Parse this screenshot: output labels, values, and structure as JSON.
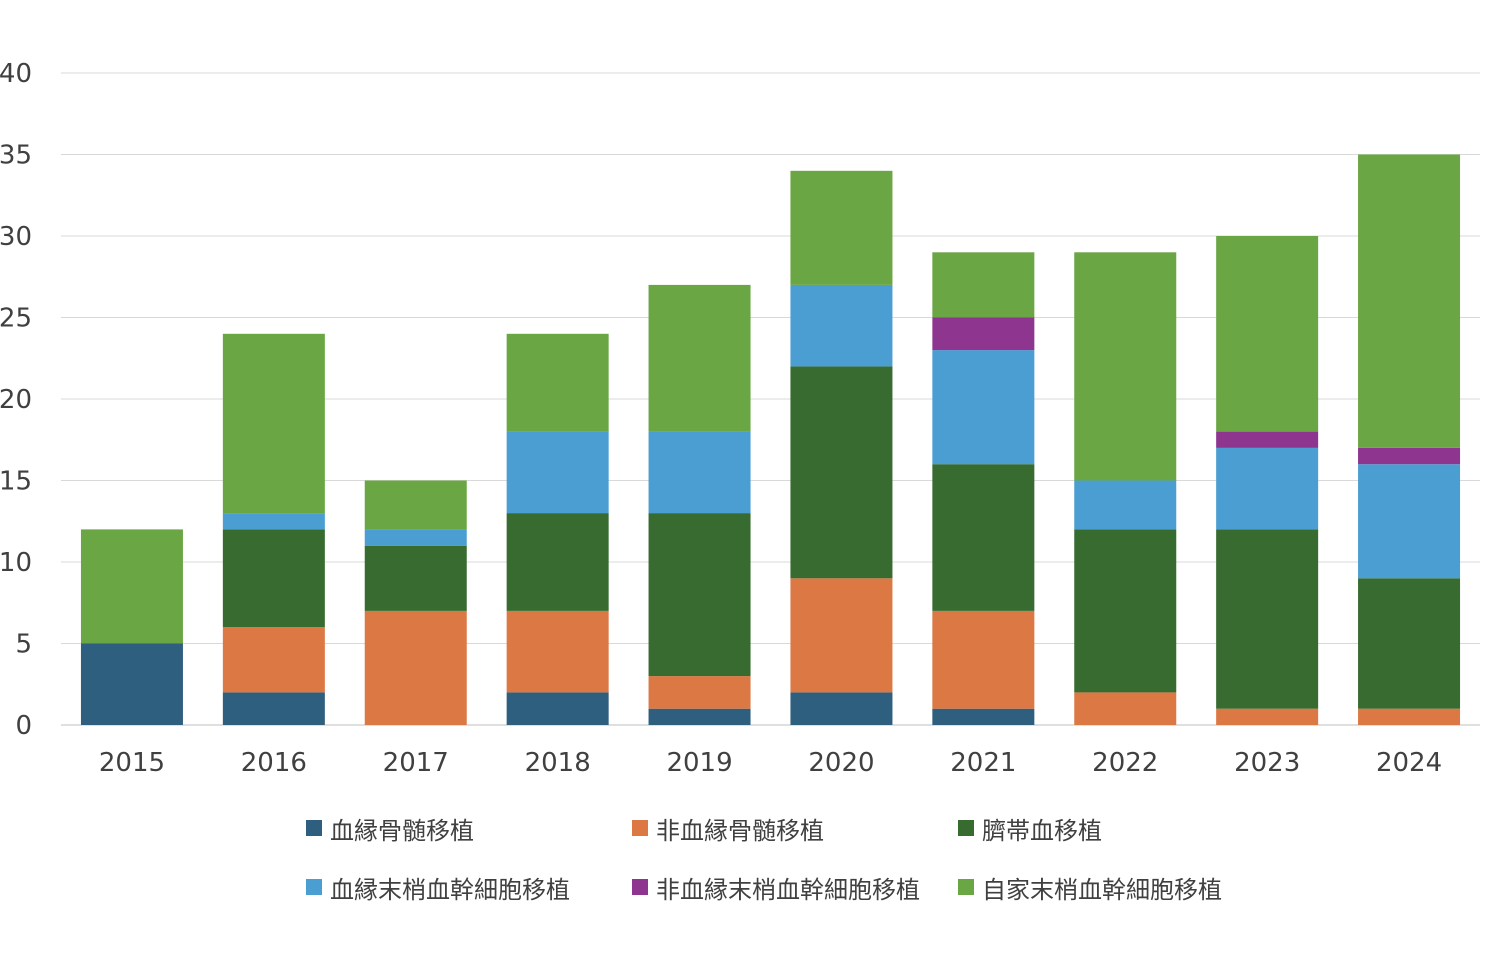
{
  "chart_data": {
    "type": "bar",
    "stacked": true,
    "categories": [
      "2015",
      "2016",
      "2017",
      "2018",
      "2019",
      "2020",
      "2021",
      "2022",
      "2023",
      "2024"
    ],
    "series": [
      {
        "name": "血縁骨髄移植",
        "color": "#2e5f7e",
        "values": [
          5,
          2,
          0,
          2,
          1,
          2,
          1,
          0,
          0,
          0
        ]
      },
      {
        "name": "非血縁骨髄移植",
        "color": "#dc7843",
        "values": [
          0,
          4,
          7,
          5,
          2,
          7,
          6,
          2,
          1,
          1
        ]
      },
      {
        "name": "臍帯血移植",
        "color": "#376b2f",
        "values": [
          0,
          6,
          4,
          6,
          10,
          13,
          9,
          10,
          11,
          8
        ]
      },
      {
        "name": "血縁末梢血幹細胞移植",
        "color": "#4b9ed2",
        "values": [
          0,
          1,
          1,
          5,
          5,
          5,
          7,
          3,
          5,
          7
        ]
      },
      {
        "name": "非血縁末梢血幹細胞移植",
        "color": "#8e3590",
        "values": [
          0,
          0,
          0,
          0,
          0,
          0,
          2,
          0,
          1,
          1
        ]
      },
      {
        "name": "自家末梢血幹細胞移植",
        "color": "#6ba644",
        "values": [
          7,
          11,
          3,
          6,
          9,
          7,
          4,
          14,
          12,
          18
        ]
      }
    ],
    "y_ticks": [
      "0",
      "5",
      "10",
      "15",
      "20",
      "25",
      "30",
      "35",
      "40"
    ],
    "ylim": [
      0,
      40
    ],
    "title": "",
    "xlabel": "",
    "ylabel": "",
    "grid": true,
    "legend_position": "bottom"
  }
}
